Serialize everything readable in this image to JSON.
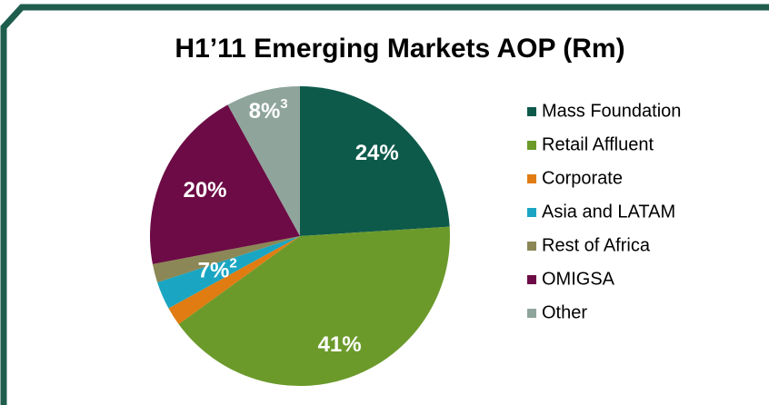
{
  "chart_data": {
    "type": "pie",
    "title": "H1’11 Emerging Markets AOP (Rm)",
    "categories": [
      "Mass Foundation",
      "Retail Affluent",
      "Corporate",
      "Asia and LATAM",
      "Rest of Africa",
      "OMIGSA",
      "Other"
    ],
    "values": [
      24,
      41,
      2,
      3,
      2,
      20,
      8
    ],
    "value_labels": [
      "24%",
      "41%",
      null,
      null,
      null,
      "20%",
      "8%"
    ],
    "label_notes": [
      null,
      null,
      null,
      null,
      null,
      null,
      "3"
    ],
    "colors": [
      "#0d5a4b",
      "#6b9a2b",
      "#e07c12",
      "#1aa6c2",
      "#8b8756",
      "#6c0b45",
      "#8fa59c"
    ],
    "annotations": [
      {
        "text": "7%",
        "note": "2"
      }
    ],
    "legend": "right"
  }
}
